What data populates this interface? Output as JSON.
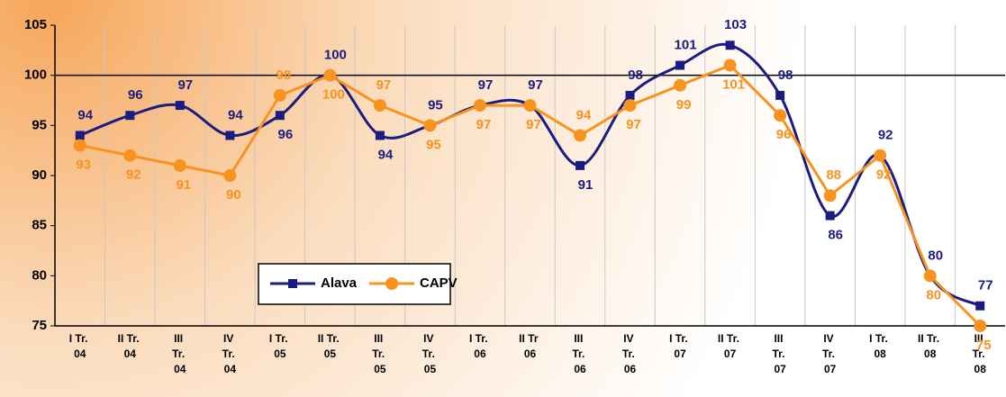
{
  "chart_data": {
    "type": "line",
    "categories": [
      "I Tr. 04",
      "II Tr. 04",
      "III Tr. 04",
      "IV Tr. 04",
      "I Tr. 05",
      "II Tr. 05",
      "III Tr. 05",
      "IV Tr. 05",
      "I Tr. 06",
      "II Tr 06",
      "III Tr. 06",
      "IV Tr. 06",
      "I Tr. 07",
      "II Tr. 07",
      "III Tr. 07",
      "IV Tr. 07",
      "I Tr. 08",
      "II Tr. 08",
      "III Tr. 08"
    ],
    "series": [
      {
        "name": "Alava",
        "color": "#1c1c80",
        "marker": "square",
        "smooth": true,
        "values": [
          94,
          96,
          97,
          94,
          96,
          100,
          94,
          95,
          97,
          97,
          91,
          98,
          101,
          103,
          98,
          86,
          92,
          80,
          77
        ]
      },
      {
        "name": "CAPV",
        "color": "#f7931e",
        "marker": "circle",
        "smooth": false,
        "values": [
          93,
          92,
          91,
          90,
          98,
          100,
          97,
          95,
          97,
          97,
          94,
          97,
          99,
          101,
          96,
          88,
          92,
          80,
          75
        ]
      }
    ],
    "ylim": [
      75,
      105
    ],
    "yticks": [
      75,
      80,
      85,
      90,
      95,
      100,
      105
    ],
    "reference_line": 100,
    "grid": "vertical",
    "legend": "bottom-center"
  }
}
